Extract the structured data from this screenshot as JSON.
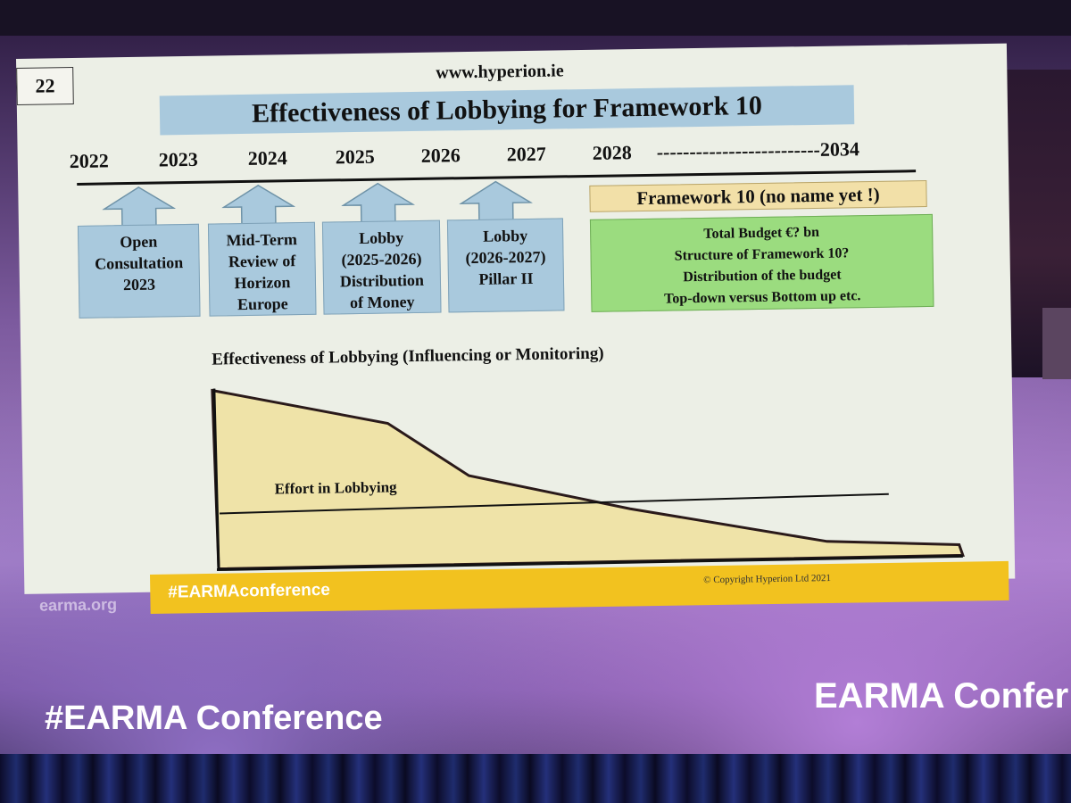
{
  "slide": {
    "page_number": "22",
    "url": "www.hyperion.ie",
    "title": "Effectiveness of Lobbying for Framework 10",
    "years": [
      "2022",
      "2023",
      "2024",
      "2025",
      "2026",
      "2027",
      "2028",
      "-------------------------2034"
    ],
    "boxes": [
      {
        "lines": [
          "Open",
          "Consultation",
          "2023"
        ]
      },
      {
        "lines": [
          "Mid-Term",
          "Review of",
          "Horizon",
          "Europe"
        ]
      },
      {
        "lines": [
          "Lobby",
          "(2025-2026)",
          "Distribution",
          "of Money"
        ]
      },
      {
        "lines": [
          "Lobby",
          "(2026-2027)",
          "Pillar II"
        ]
      }
    ],
    "framework": {
      "label": "Framework 10 (no name yet !)",
      "lines": [
        "Total Budget €? bn",
        "Structure of Framework 10?",
        "Distribution of the budget",
        "Top-down versus Bottom up etc."
      ]
    },
    "chart_title": "Effectiveness of Lobbying  (Influencing or Monitoring)",
    "effort_label": "Effort in Lobbying",
    "copyright": "© Copyright Hyperion Ltd 2021"
  },
  "banner": {
    "hashtag": "#EARMAconference"
  },
  "venue": {
    "site": "earma.org",
    "left_caption": "#EARMA Conference",
    "right_caption": "EARMA Confer"
  },
  "colors": {
    "slide_title_bg": "#a9c9dd",
    "framework_box": "#9bdc7f",
    "area_fill": "#efe3a8",
    "banner": "#f2c21f"
  }
}
